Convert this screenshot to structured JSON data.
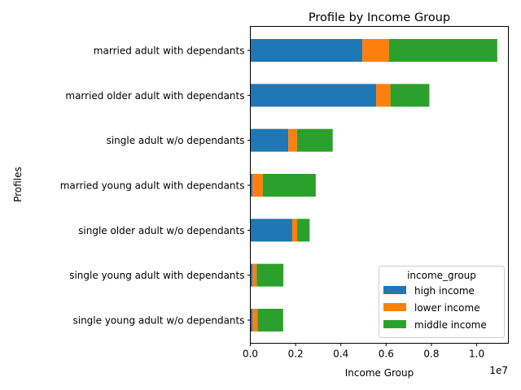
{
  "chart_data": {
    "type": "bar",
    "orientation": "horizontal",
    "stacked": true,
    "title": "Profile by Income Group",
    "xlabel": "Income Group",
    "ylabel": "Profiles",
    "x_offset_label": "1e7",
    "xlim": [
      0,
      1.14
    ],
    "x_ticks": [
      0.0,
      0.2,
      0.4,
      0.6,
      0.8,
      1.0
    ],
    "x_tick_labels": [
      "0.0",
      "0.2",
      "0.4",
      "0.6",
      "0.8",
      "1.0"
    ],
    "x_units_note": "values in units of 1e7",
    "categories": [
      "married adult with dependants",
      "married older adult with dependants",
      "single adult w/o dependants",
      "married young adult with dependants",
      "single older adult w/o dependants",
      "single young adult with dependants",
      "single young adult w/o dependants"
    ],
    "series": [
      {
        "name": "high income",
        "color": "#1f77b4",
        "values": [
          0.495,
          0.556,
          0.168,
          0.01,
          0.185,
          0.01,
          0.01
        ]
      },
      {
        "name": "lower income",
        "color": "#ff7f0e",
        "values": [
          0.117,
          0.063,
          0.038,
          0.045,
          0.022,
          0.018,
          0.022
        ]
      },
      {
        "name": "middle income",
        "color": "#2ca02c",
        "values": [
          0.479,
          0.172,
          0.158,
          0.234,
          0.055,
          0.118,
          0.113
        ]
      }
    ],
    "legend": {
      "title": "income_group",
      "placement": "lower-right"
    },
    "grid": false
  }
}
